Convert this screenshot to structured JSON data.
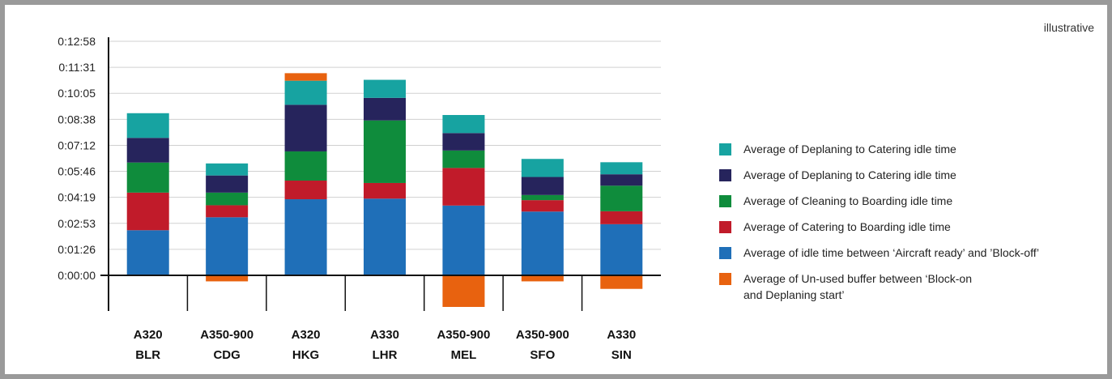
{
  "note": "illustrative",
  "chart_data": {
    "type": "bar",
    "stacked": true,
    "y_tick_labels": [
      "0:00:00",
      "0:01:26",
      "0:02:53",
      "0:04:19",
      "0:05:46",
      "0:07:12",
      "0:08:38",
      "0:10:05",
      "0:11:31",
      "0:12:58"
    ],
    "ylim_seconds": [
      -120,
      778
    ],
    "grid": true,
    "legend_position": "right",
    "categories": [
      [
        "A320",
        "BLR"
      ],
      [
        "A350-900",
        "CDG"
      ],
      [
        "A320",
        "HKG"
      ],
      [
        "A330",
        "LHR"
      ],
      [
        "A350-900",
        "MEL"
      ],
      [
        "A350-900",
        "SFO"
      ],
      [
        "A330",
        "SIN"
      ]
    ],
    "series": [
      {
        "name": "Average of idle time between ‘Aircraft ready’ and ’Block-off’",
        "color": "#1f6fb8",
        "values": [
          150,
          193,
          253,
          255,
          232,
          212,
          170
        ]
      },
      {
        "name": "Average of Catering to Boarding idle time",
        "color": "#c11b2a",
        "values": [
          125,
          40,
          62,
          52,
          125,
          38,
          43
        ]
      },
      {
        "name": "Average of Cleaning to Boarding idle time",
        "color": "#0f8c3c",
        "values": [
          100,
          42,
          97,
          208,
          58,
          17,
          85
        ]
      },
      {
        "name": "Average of Deplaning to Catering idle time",
        "color": "#26245c",
        "values": [
          82,
          57,
          155,
          75,
          58,
          60,
          38
        ]
      },
      {
        "name": "Average of Deplaning to Catering idle time",
        "color": "#17a3a1",
        "values": [
          82,
          40,
          80,
          60,
          60,
          60,
          40
        ]
      },
      {
        "name": "Average of Un-used buffer between ‘Block-on and Deplaning start’",
        "color": "#e8620f",
        "values": [
          0,
          -20,
          25,
          0,
          -105,
          -20,
          -45
        ]
      }
    ]
  },
  "legend": [
    {
      "label": "Average of Deplaning to Catering idle time",
      "color": "#17a3a1"
    },
    {
      "label": "Average of Deplaning to Catering idle time",
      "color": "#26245c"
    },
    {
      "label": "Average of Cleaning to Boarding idle time",
      "color": "#0f8c3c"
    },
    {
      "label": "Average of Catering to Boarding idle time",
      "color": "#c11b2a"
    },
    {
      "label": "Average of idle time between ‘Aircraft ready’ and ’Block-off’",
      "color": "#1f6fb8"
    },
    {
      "label": "Average of Un-used buffer between ‘Block-on",
      "label2": "and Deplaning start’",
      "color": "#e8620f"
    }
  ]
}
